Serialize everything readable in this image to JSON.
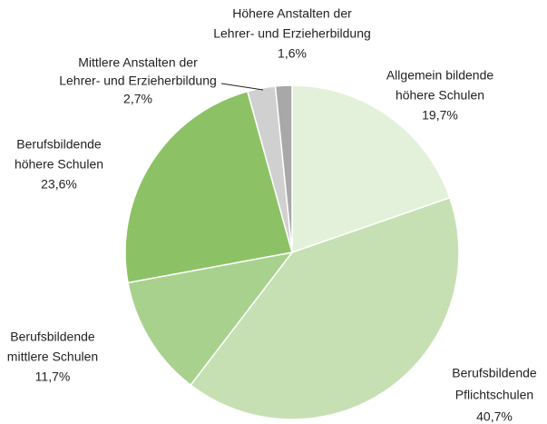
{
  "chart_data": {
    "type": "pie",
    "categories": [
      [
        "Allgemein bildende",
        "höhere Schulen"
      ],
      [
        "Berufsbildende",
        "Pflichtschulen"
      ],
      [
        "Berufsbildende",
        "mittlere Schulen"
      ],
      [
        "Berufsbildende",
        "höhere Schulen"
      ],
      [
        "Mittlere Anstalten der",
        "Lehrer- und Erzieherbildung"
      ],
      [
        "Höhere Anstalten der",
        "Lehrer- und Erzieherbildung"
      ]
    ],
    "values": [
      19.7,
      40.7,
      11.7,
      23.6,
      2.7,
      1.6
    ],
    "value_labels": [
      "19,7%",
      "40,7%",
      "11,7%",
      "23,6%",
      "2,7%",
      "1,6%"
    ],
    "colors": [
      "#e4f1da",
      "#c6e0b4",
      "#a9d18e",
      "#8cc265",
      "#d0d0d0",
      "#a8a8a8"
    ]
  }
}
